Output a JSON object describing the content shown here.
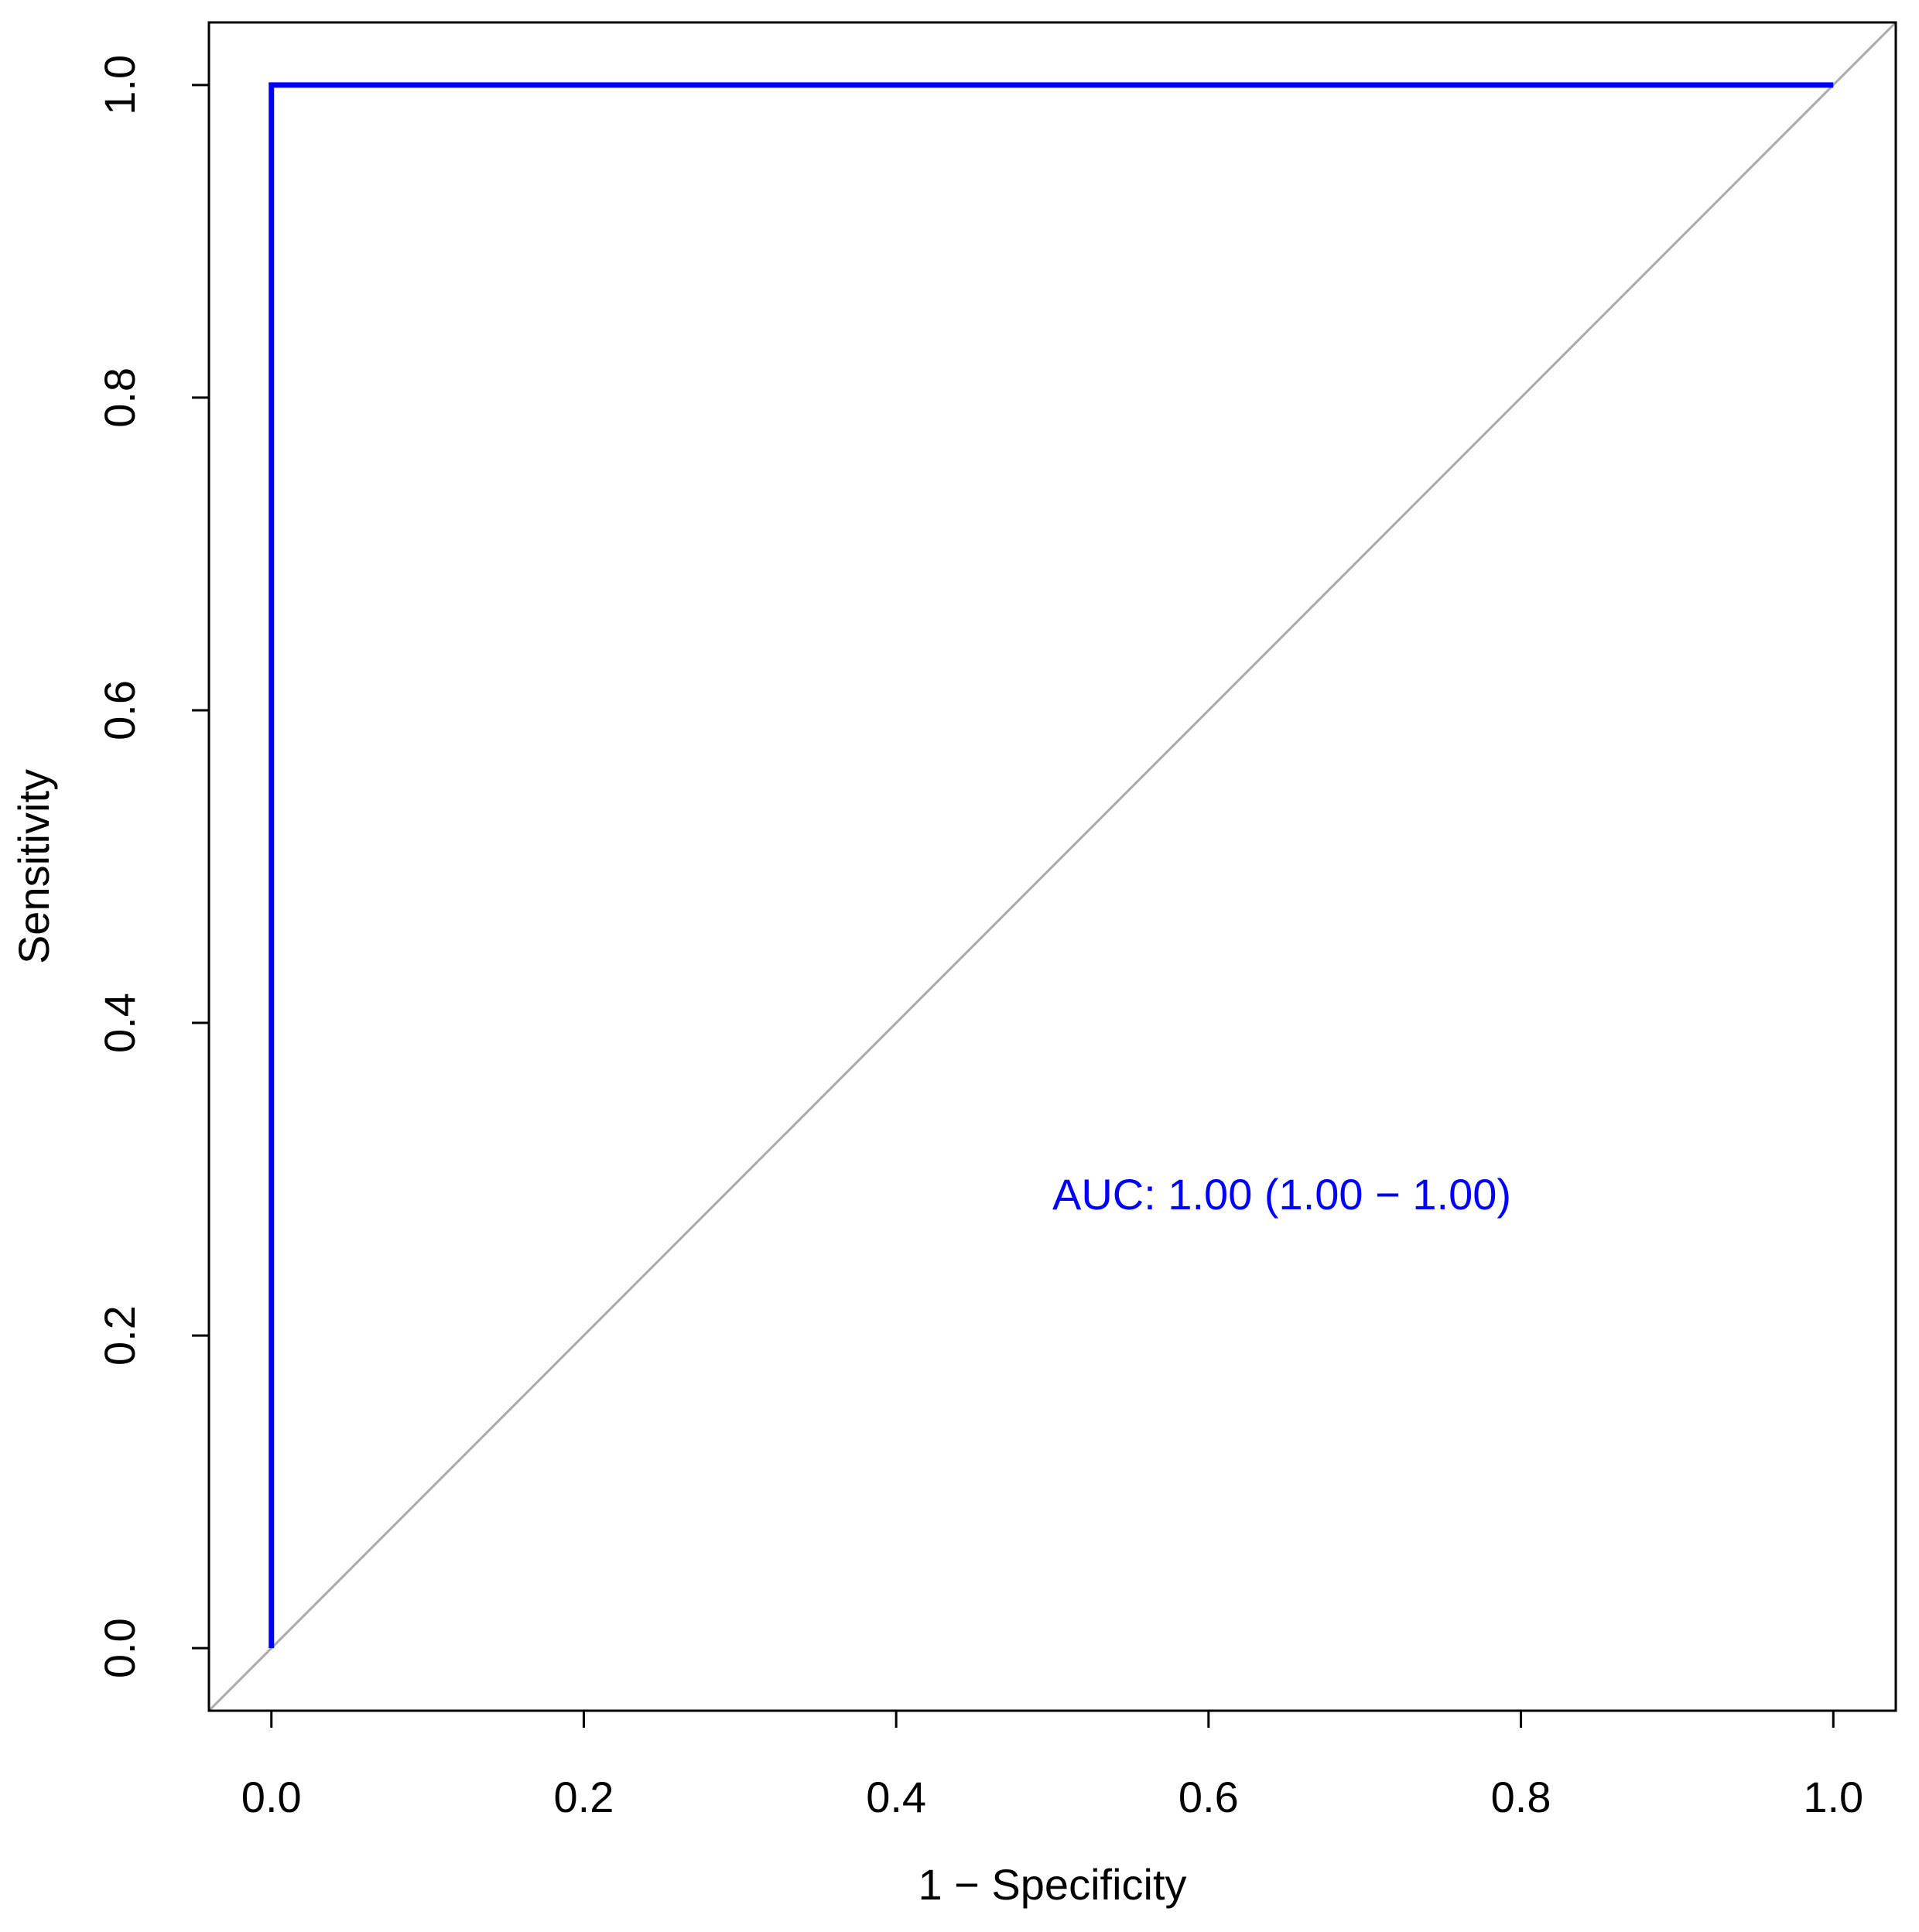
{
  "chart_data": {
    "type": "line",
    "x_label": "1 − Specificity",
    "y_label": "Sensitivity",
    "annotation": "AUC: 1.00 (1.00 − 1.00)",
    "x": [
      0,
      0,
      1
    ],
    "values": [
      0,
      1,
      1
    ],
    "color": "#0000ff",
    "diagonal": true,
    "diagonal_color": "#aaaaaa",
    "xlim": [
      -0.04,
      1.04
    ],
    "ylim": [
      -0.04,
      1.04
    ],
    "xticks": [
      {
        "value": 0,
        "label": "0.0"
      },
      0.2,
      0.4,
      0.6,
      0.8,
      {
        "value": 1,
        "label": "1.0"
      }
    ],
    "yticks": [
      {
        "value": 0,
        "label": "0.0"
      },
      0.2,
      0.4,
      0.6,
      0.8,
      {
        "value": 1,
        "label": "1.0"
      }
    ]
  }
}
